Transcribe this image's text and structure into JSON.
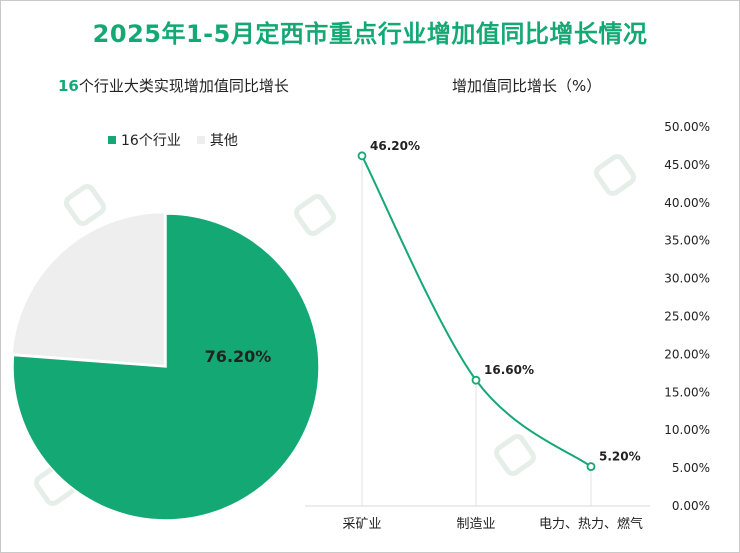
{
  "title": "2025年1-5月定西市重点行业增加值同比增长情况",
  "colors": {
    "accent": "#14a875",
    "other": "#eeeeee"
  },
  "chart_data": [
    {
      "type": "pie",
      "title_num": "16",
      "title_rest": "个行业大类实现增加值同比增长",
      "legend": [
        "16个行业",
        "其他"
      ],
      "slices": [
        {
          "label": "16个行业",
          "value": 76.2,
          "display": "76.20%"
        },
        {
          "label": "其他",
          "value": 23.8
        }
      ]
    },
    {
      "type": "line",
      "title": "增加值同比增长（%）",
      "categories": [
        "采矿业",
        "制造业",
        "电力、热力、燃气"
      ],
      "values": [
        46.2,
        16.6,
        5.2
      ],
      "value_labels": [
        "46.20%",
        "16.60%",
        "5.20%"
      ],
      "y_ticks": [
        "50.00%",
        "45.00%",
        "40.00%",
        "35.00%",
        "30.00%",
        "25.00%",
        "20.00%",
        "15.00%",
        "10.00%",
        "5.00%",
        "0.00%"
      ],
      "ylim": [
        0,
        50
      ]
    }
  ]
}
